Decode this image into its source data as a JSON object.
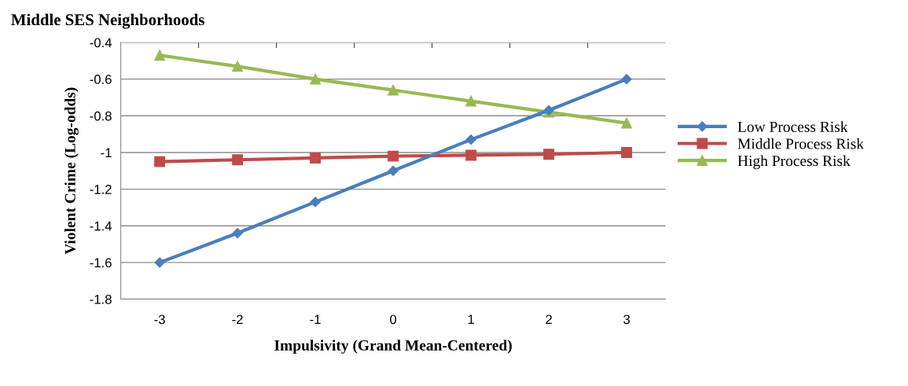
{
  "chart_data": {
    "type": "line",
    "title": "Middle SES Neighborhoods",
    "xlabel": "Impulsivity (Grand Mean-Centered)",
    "ylabel": "Violent Crime (Log-odds)",
    "categories": [
      "-3",
      "-2",
      "-1",
      "0",
      "1",
      "2",
      "3"
    ],
    "series": [
      {
        "name": "Low Process Risk",
        "color": "#4a7ebb",
        "marker": "diamond",
        "values": [
          -1.6,
          -1.44,
          -1.27,
          -1.1,
          -0.93,
          -0.77,
          -0.6
        ]
      },
      {
        "name": "Middle Process Risk",
        "color": "#be4b48",
        "marker": "square",
        "values": [
          -1.05,
          -1.04,
          -1.03,
          -1.02,
          -1.015,
          -1.01,
          -1.0
        ]
      },
      {
        "name": "High Process Risk",
        "color": "#98b954",
        "marker": "triangle",
        "values": [
          -0.47,
          -0.53,
          -0.6,
          -0.66,
          -0.72,
          -0.78,
          -0.84
        ]
      }
    ],
    "ylim": [
      -1.8,
      -0.4
    ],
    "yticks": [
      -1.8,
      -1.6,
      -1.4,
      -1.2,
      -1,
      -0.8,
      -0.6,
      -0.4
    ],
    "grid": "y",
    "legend": "right",
    "line_style": "solid"
  }
}
